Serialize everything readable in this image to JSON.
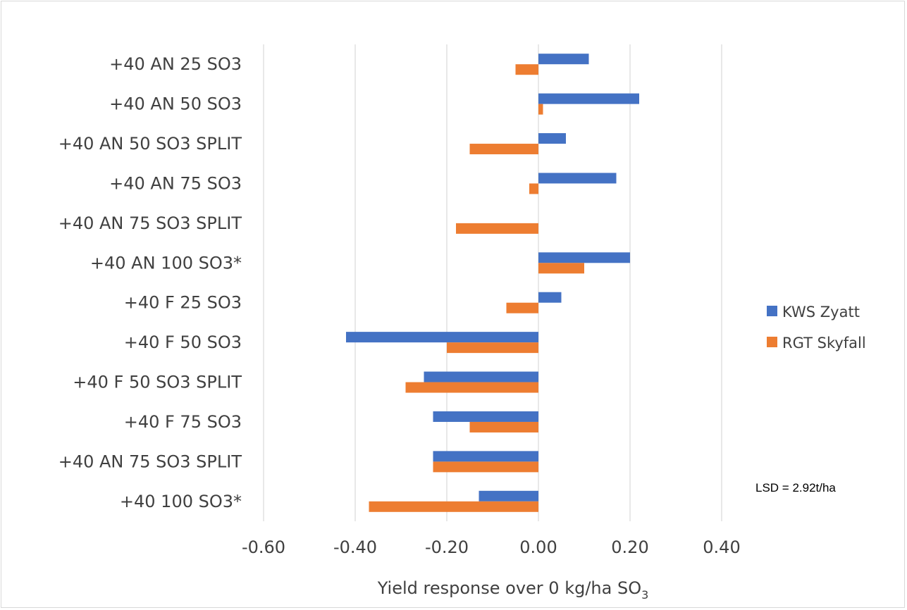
{
  "chart_data": {
    "type": "bar",
    "orientation": "horizontal",
    "categories": [
      "+40 AN 25 SO3",
      "+40 AN 50 SO3",
      "+40 AN 50 SO3 SPLIT",
      "+40 AN 75 SO3",
      "+40 AN 75 SO3 SPLIT",
      "+40 AN 100 SO3*",
      "+40 F 25 SO3",
      "+40 F 50 SO3",
      "+40 F 50 SO3 SPLIT",
      "+40 F 75 SO3",
      "+40 AN 75 SO3 SPLIT",
      "+40 100 SO3*"
    ],
    "series": [
      {
        "name": "KWS Zyatt",
        "color": "#4472c4",
        "values": [
          0.11,
          0.22,
          0.06,
          0.17,
          0.0,
          0.2,
          0.05,
          -0.42,
          -0.25,
          -0.23,
          -0.23,
          -0.13
        ]
      },
      {
        "name": "RGT Skyfall",
        "color": "#ed7d31",
        "values": [
          -0.05,
          0.01,
          -0.15,
          -0.02,
          -0.18,
          0.1,
          -0.07,
          -0.2,
          -0.29,
          -0.15,
          -0.23,
          -0.37
        ]
      }
    ],
    "xlim": [
      -0.6,
      0.4
    ],
    "xticks": [
      -0.6,
      -0.4,
      -0.2,
      0.0,
      0.2,
      0.4
    ],
    "xtick_labels": [
      "-0.60",
      "-0.40",
      "-0.20",
      "0.00",
      "0.20",
      "0.40"
    ],
    "xlabel_main": "Yield response over 0 kg/ha SO",
    "xlabel_sub": "3",
    "grid": "vertical",
    "legend_position": "right",
    "annotation": "LSD = 2.92t/ha"
  }
}
